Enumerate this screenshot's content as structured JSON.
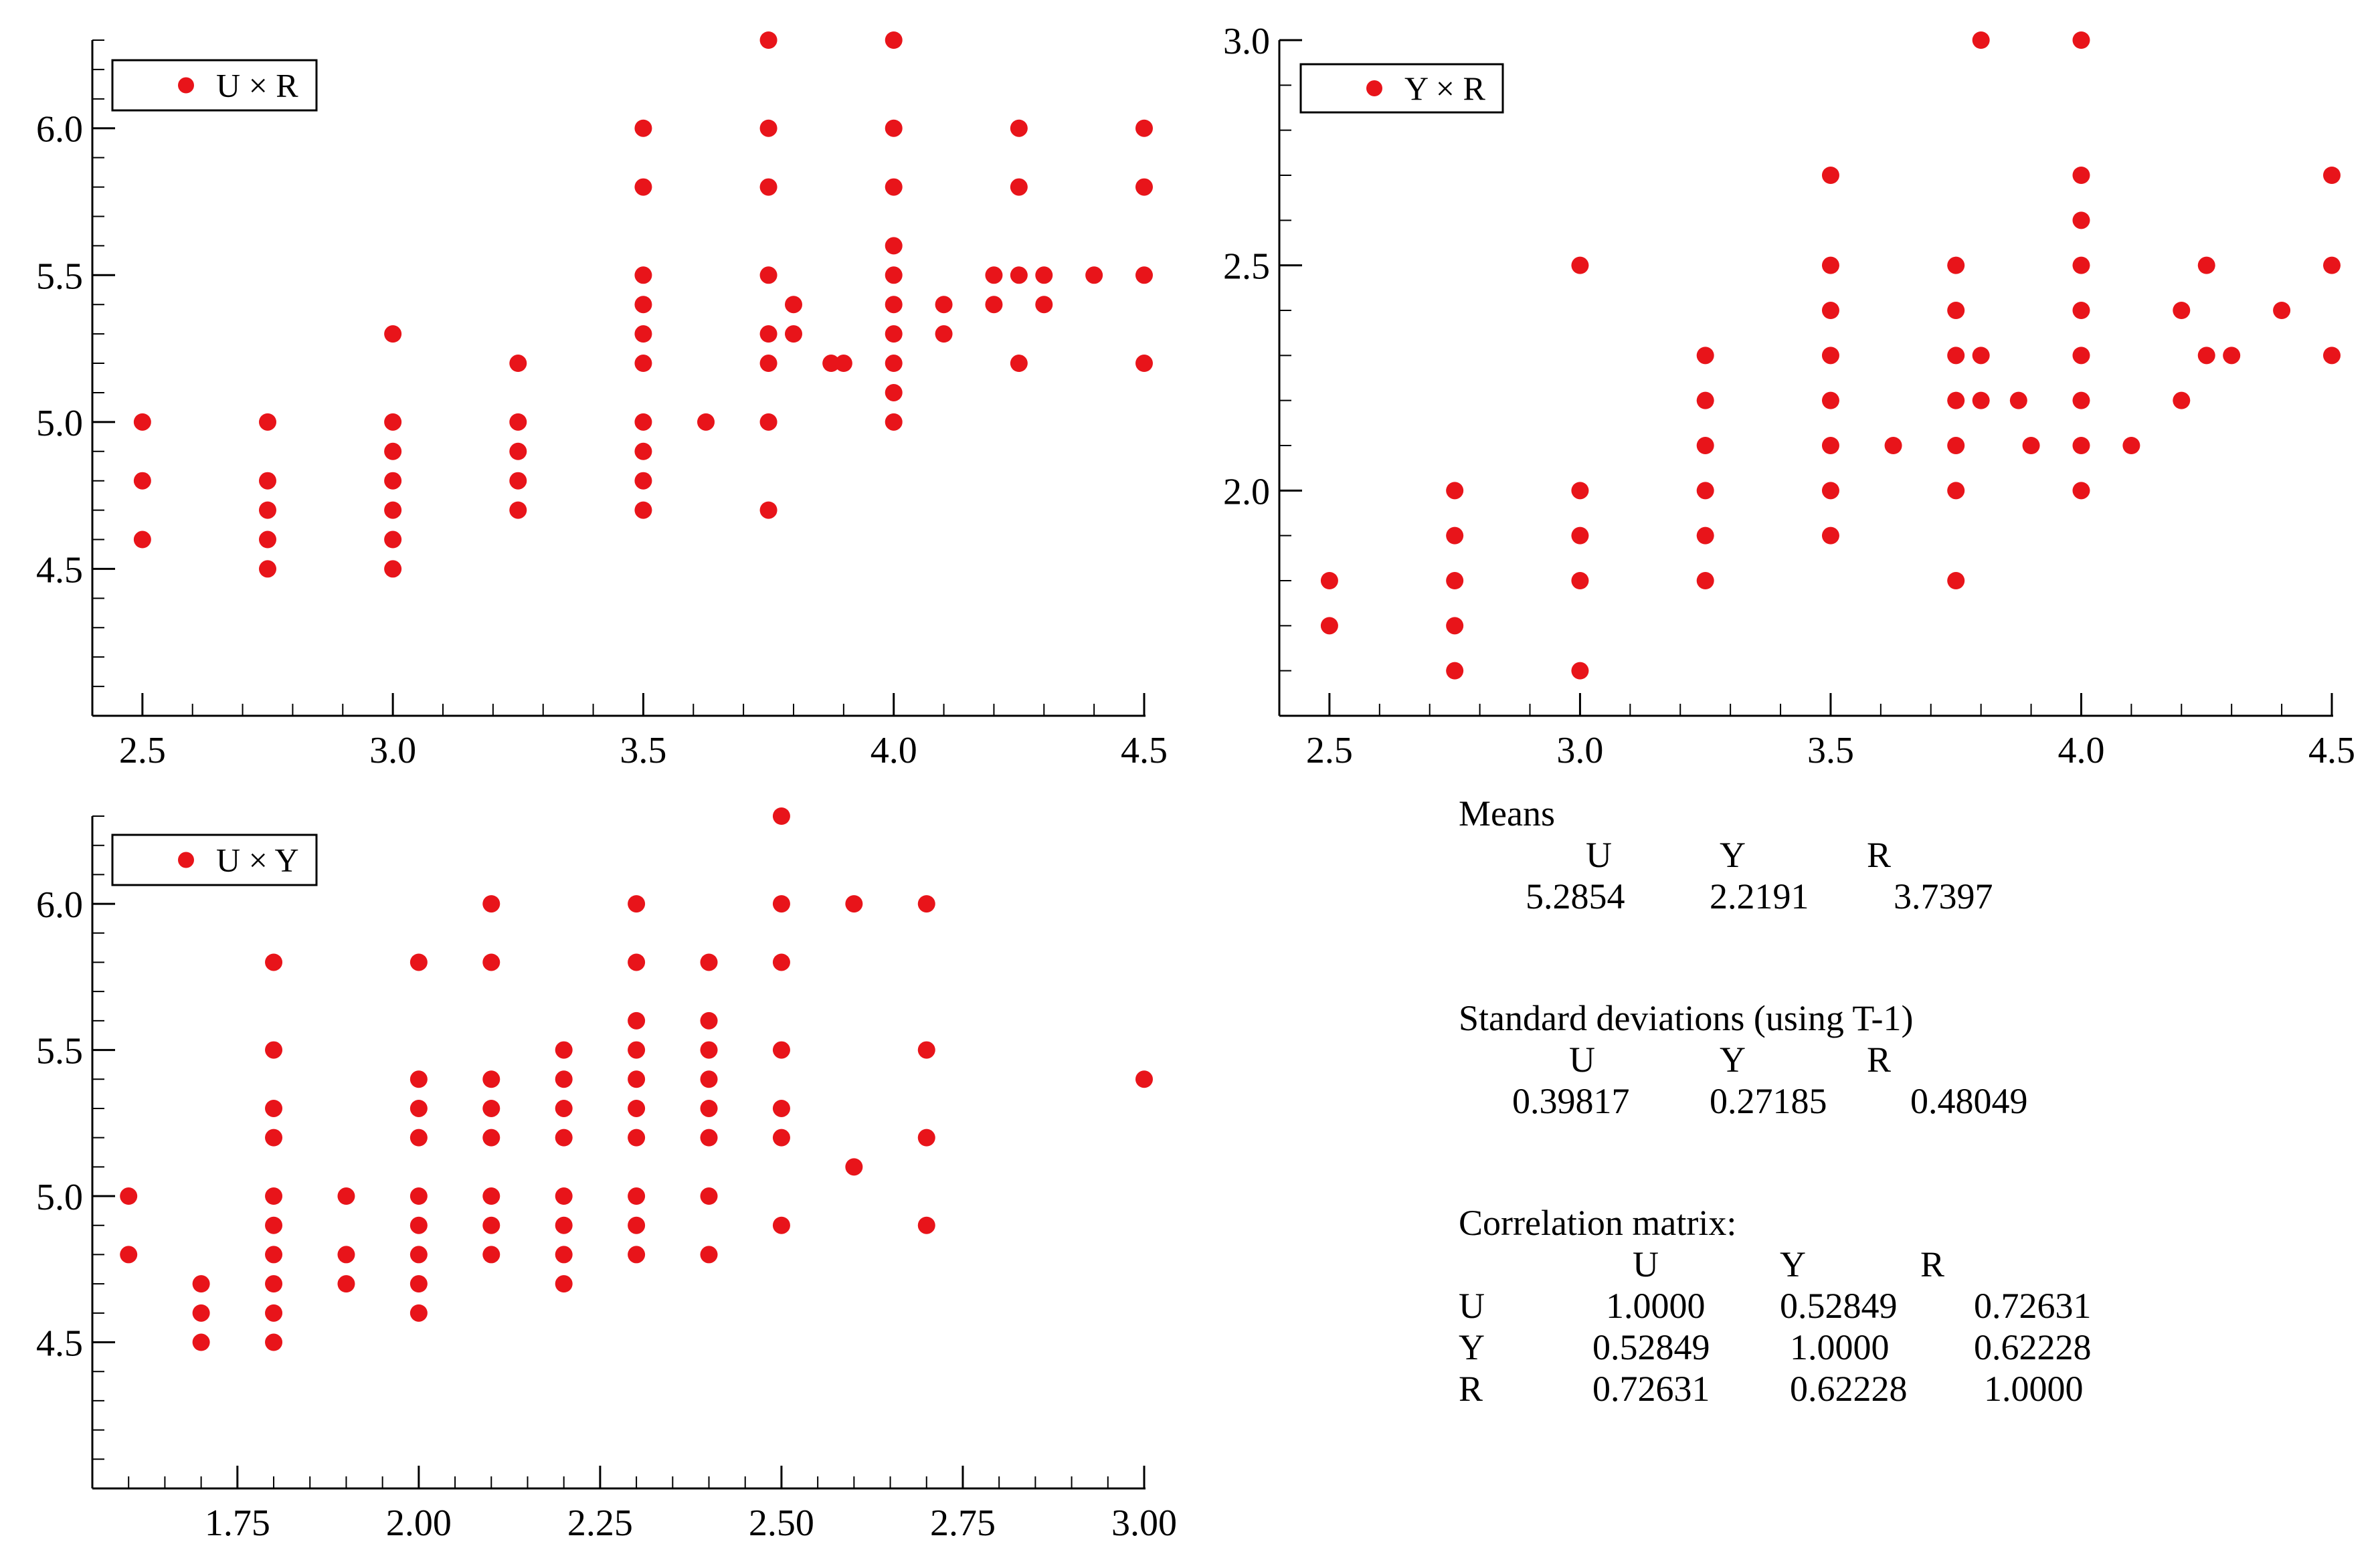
{
  "chart_data": [
    {
      "type": "scatter",
      "id": "ur",
      "legend": "U × R",
      "legend_position": "top-left",
      "xlim": [
        2.4,
        4.5
      ],
      "ylim": [
        4.0,
        6.3
      ],
      "xticks": [
        2.5,
        3.0,
        3.5,
        4.0,
        4.5
      ],
      "xtick_labels": [
        "2.5",
        "3.0",
        "3.5",
        "4.0",
        "4.5"
      ],
      "yticks": [
        4.5,
        5.0,
        5.5,
        6.0
      ],
      "ytick_labels": [
        "4.5",
        "5.0",
        "5.5",
        "6.0"
      ],
      "minor_x": 0.1,
      "minor_y": 0.1,
      "color": "#e8141a",
      "points": [
        [
          2.5,
          5.0
        ],
        [
          2.5,
          4.8
        ],
        [
          2.5,
          4.6
        ],
        [
          2.75,
          5.0
        ],
        [
          2.75,
          4.8
        ],
        [
          2.75,
          4.7
        ],
        [
          2.75,
          4.6
        ],
        [
          2.75,
          4.5
        ],
        [
          3.0,
          5.3
        ],
        [
          3.0,
          5.0
        ],
        [
          3.0,
          4.9
        ],
        [
          3.0,
          4.8
        ],
        [
          3.0,
          4.7
        ],
        [
          3.0,
          4.6
        ],
        [
          3.0,
          4.5
        ],
        [
          3.25,
          5.2
        ],
        [
          3.25,
          5.0
        ],
        [
          3.25,
          4.9
        ],
        [
          3.25,
          4.8
        ],
        [
          3.25,
          4.7
        ],
        [
          3.5,
          6.0
        ],
        [
          3.5,
          5.8
        ],
        [
          3.5,
          5.5
        ],
        [
          3.5,
          5.4
        ],
        [
          3.5,
          5.3
        ],
        [
          3.5,
          5.2
        ],
        [
          3.5,
          5.0
        ],
        [
          3.5,
          4.9
        ],
        [
          3.5,
          4.8
        ],
        [
          3.5,
          4.7
        ],
        [
          3.625,
          5.0
        ],
        [
          3.75,
          6.3
        ],
        [
          3.75,
          6.0
        ],
        [
          3.75,
          5.8
        ],
        [
          3.75,
          5.5
        ],
        [
          3.75,
          5.3
        ],
        [
          3.75,
          5.2
        ],
        [
          3.75,
          5.0
        ],
        [
          3.75,
          4.7
        ],
        [
          3.8,
          5.4
        ],
        [
          3.8,
          5.3
        ],
        [
          3.875,
          5.2
        ],
        [
          3.9,
          5.2
        ],
        [
          4.0,
          6.3
        ],
        [
          4.0,
          6.0
        ],
        [
          4.0,
          5.8
        ],
        [
          4.0,
          5.6
        ],
        [
          4.0,
          5.5
        ],
        [
          4.0,
          5.4
        ],
        [
          4.0,
          5.3
        ],
        [
          4.0,
          5.2
        ],
        [
          4.0,
          5.1
        ],
        [
          4.0,
          5.0
        ],
        [
          4.1,
          5.4
        ],
        [
          4.1,
          5.3
        ],
        [
          4.2,
          5.5
        ],
        [
          4.2,
          5.4
        ],
        [
          4.25,
          6.0
        ],
        [
          4.25,
          5.8
        ],
        [
          4.25,
          5.5
        ],
        [
          4.25,
          5.2
        ],
        [
          4.3,
          5.5
        ],
        [
          4.3,
          5.4
        ],
        [
          4.4,
          5.5
        ],
        [
          4.5,
          6.0
        ],
        [
          4.5,
          5.8
        ],
        [
          4.5,
          5.5
        ],
        [
          4.5,
          5.2
        ]
      ]
    },
    {
      "type": "scatter",
      "id": "yr",
      "legend": "Y × R",
      "legend_position": "top-left",
      "xlim": [
        2.4,
        4.5
      ],
      "ylim": [
        1.5,
        3.0
      ],
      "xticks": [
        2.5,
        3.0,
        3.5,
        4.0,
        4.5
      ],
      "xtick_labels": [
        "2.5",
        "3.0",
        "3.5",
        "4.0",
        "4.5"
      ],
      "yticks": [
        2.0,
        2.5,
        3.0
      ],
      "ytick_labels": [
        "2.0",
        "2.5",
        "3.0"
      ],
      "minor_x": 0.1,
      "minor_y": 0.1,
      "color": "#e8141a",
      "points": [
        [
          2.5,
          1.8
        ],
        [
          2.5,
          1.7
        ],
        [
          2.75,
          2.0
        ],
        [
          2.75,
          1.9
        ],
        [
          2.75,
          1.8
        ],
        [
          2.75,
          1.7
        ],
        [
          2.75,
          1.6
        ],
        [
          3.0,
          2.5
        ],
        [
          3.0,
          2.0
        ],
        [
          3.0,
          1.9
        ],
        [
          3.0,
          1.8
        ],
        [
          3.0,
          1.6
        ],
        [
          3.25,
          2.3
        ],
        [
          3.25,
          2.2
        ],
        [
          3.25,
          2.1
        ],
        [
          3.25,
          2.0
        ],
        [
          3.25,
          1.9
        ],
        [
          3.25,
          1.8
        ],
        [
          3.5,
          2.7
        ],
        [
          3.5,
          2.5
        ],
        [
          3.5,
          2.4
        ],
        [
          3.5,
          2.3
        ],
        [
          3.5,
          2.2
        ],
        [
          3.5,
          2.1
        ],
        [
          3.5,
          2.0
        ],
        [
          3.5,
          1.9
        ],
        [
          3.625,
          2.1
        ],
        [
          3.75,
          2.5
        ],
        [
          3.75,
          2.4
        ],
        [
          3.75,
          2.3
        ],
        [
          3.75,
          2.2
        ],
        [
          3.75,
          2.1
        ],
        [
          3.75,
          2.0
        ],
        [
          3.75,
          1.8
        ],
        [
          3.8,
          3.0
        ],
        [
          3.8,
          2.3
        ],
        [
          3.8,
          2.2
        ],
        [
          3.875,
          2.2
        ],
        [
          3.9,
          2.1
        ],
        [
          4.0,
          3.0
        ],
        [
          4.0,
          2.7
        ],
        [
          4.0,
          2.6
        ],
        [
          4.0,
          2.5
        ],
        [
          4.0,
          2.4
        ],
        [
          4.0,
          2.3
        ],
        [
          4.0,
          2.2
        ],
        [
          4.0,
          2.1
        ],
        [
          4.0,
          2.0
        ],
        [
          4.1,
          2.1
        ],
        [
          4.2,
          2.4
        ],
        [
          4.2,
          2.2
        ],
        [
          4.25,
          2.5
        ],
        [
          4.25,
          2.3
        ],
        [
          4.3,
          2.3
        ],
        [
          4.4,
          2.4
        ],
        [
          4.5,
          2.7
        ],
        [
          4.5,
          2.5
        ],
        [
          4.5,
          2.3
        ]
      ]
    },
    {
      "type": "scatter",
      "id": "uy",
      "legend": "U × Y",
      "legend_position": "top-left",
      "xlim": [
        1.55,
        3.0
      ],
      "ylim": [
        4.0,
        6.3
      ],
      "xticks": [
        1.75,
        2.0,
        2.25,
        2.5,
        2.75,
        3.0
      ],
      "xtick_labels": [
        "1.75",
        "2.00",
        "2.25",
        "2.50",
        "2.75",
        "3.00"
      ],
      "yticks": [
        4.5,
        5.0,
        5.5,
        6.0
      ],
      "ytick_labels": [
        "4.5",
        "5.0",
        "5.5",
        "6.0"
      ],
      "minor_x": 0.05,
      "minor_y": 0.1,
      "color": "#e8141a",
      "points": [
        [
          1.6,
          5.0
        ],
        [
          1.6,
          4.8
        ],
        [
          1.7,
          4.7
        ],
        [
          1.7,
          4.6
        ],
        [
          1.7,
          4.5
        ],
        [
          1.8,
          5.8
        ],
        [
          1.8,
          5.5
        ],
        [
          1.8,
          5.3
        ],
        [
          1.8,
          5.2
        ],
        [
          1.8,
          5.0
        ],
        [
          1.8,
          4.9
        ],
        [
          1.8,
          4.8
        ],
        [
          1.8,
          4.7
        ],
        [
          1.8,
          4.6
        ],
        [
          1.8,
          4.5
        ],
        [
          1.9,
          5.0
        ],
        [
          1.9,
          4.8
        ],
        [
          1.9,
          4.7
        ],
        [
          2.0,
          5.8
        ],
        [
          2.0,
          5.4
        ],
        [
          2.0,
          5.3
        ],
        [
          2.0,
          5.2
        ],
        [
          2.0,
          5.0
        ],
        [
          2.0,
          4.9
        ],
        [
          2.0,
          4.8
        ],
        [
          2.0,
          4.7
        ],
        [
          2.0,
          4.6
        ],
        [
          2.1,
          6.0
        ],
        [
          2.1,
          5.8
        ],
        [
          2.1,
          5.4
        ],
        [
          2.1,
          5.3
        ],
        [
          2.1,
          5.2
        ],
        [
          2.1,
          5.0
        ],
        [
          2.1,
          4.9
        ],
        [
          2.1,
          4.8
        ],
        [
          2.2,
          5.5
        ],
        [
          2.2,
          5.4
        ],
        [
          2.2,
          5.3
        ],
        [
          2.2,
          5.2
        ],
        [
          2.2,
          5.0
        ],
        [
          2.2,
          4.9
        ],
        [
          2.2,
          4.8
        ],
        [
          2.2,
          4.7
        ],
        [
          2.3,
          6.0
        ],
        [
          2.3,
          5.8
        ],
        [
          2.3,
          5.6
        ],
        [
          2.3,
          5.5
        ],
        [
          2.3,
          5.4
        ],
        [
          2.3,
          5.3
        ],
        [
          2.3,
          5.2
        ],
        [
          2.3,
          5.0
        ],
        [
          2.3,
          4.9
        ],
        [
          2.3,
          4.8
        ],
        [
          2.4,
          5.8
        ],
        [
          2.4,
          5.6
        ],
        [
          2.4,
          5.5
        ],
        [
          2.4,
          5.4
        ],
        [
          2.4,
          5.3
        ],
        [
          2.4,
          5.2
        ],
        [
          2.4,
          5.0
        ],
        [
          2.4,
          4.8
        ],
        [
          2.5,
          6.3
        ],
        [
          2.5,
          6.0
        ],
        [
          2.5,
          5.8
        ],
        [
          2.5,
          5.5
        ],
        [
          2.5,
          5.3
        ],
        [
          2.5,
          5.2
        ],
        [
          2.5,
          4.9
        ],
        [
          2.6,
          6.0
        ],
        [
          2.6,
          5.1
        ],
        [
          2.7,
          6.0
        ],
        [
          2.7,
          5.5
        ],
        [
          2.7,
          5.2
        ],
        [
          2.7,
          4.9
        ],
        [
          3.0,
          5.4
        ]
      ]
    }
  ],
  "stats": {
    "means": {
      "title": "Means",
      "headers": [
        "U",
        "Y",
        "R"
      ],
      "values": [
        "5.2854",
        "2.2191",
        "3.7397"
      ]
    },
    "std": {
      "title": "Standard deviations (using T-1)",
      "headers": [
        "U",
        "Y",
        "R"
      ],
      "values": [
        "0.39817",
        "0.27185",
        "0.48049"
      ]
    },
    "corr": {
      "title": "Correlation matrix:",
      "headers": [
        "U",
        "Y",
        "R"
      ],
      "rows": [
        {
          "label": "U",
          "values": [
            "1.0000",
            "0.52849",
            "0.72631"
          ]
        },
        {
          "label": "Y",
          "values": [
            "0.52849",
            "1.0000",
            "0.62228"
          ]
        },
        {
          "label": "R",
          "values": [
            "0.72631",
            "0.62228",
            "1.0000"
          ]
        }
      ]
    }
  }
}
